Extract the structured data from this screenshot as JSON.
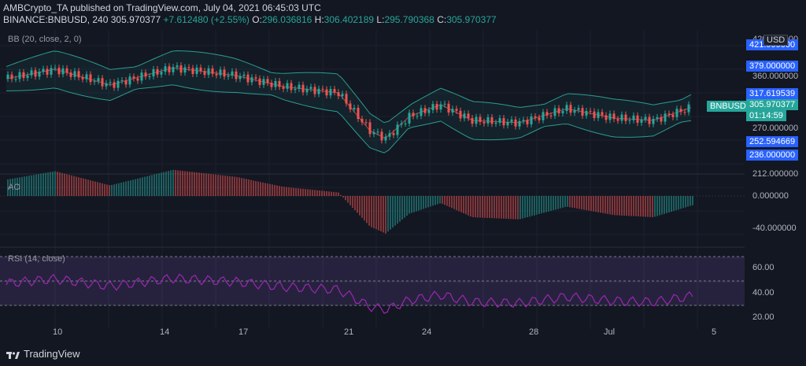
{
  "header": {
    "author_line": "AMBCrypto_TA published on TradingView.com, July 04, 2021 06:45:03 UTC",
    "symbol": "BINANCE:BNBUSD, 240",
    "last": "305.970377",
    "change": "+7.612480 (+2.55%)",
    "o_label": "O:",
    "o": "296.036816",
    "h_label": "H:",
    "h": "306.402189",
    "l_label": "L:",
    "l": "295.790368",
    "c_label": "C:",
    "c": "305.970377"
  },
  "panes": {
    "bb_label": "BB (20, close, 2, 0)",
    "ao_label": "AO",
    "rsi_label": "RSI (14, close)"
  },
  "price_axis": {
    "currency": "USD",
    "labels": [
      "420.000000",
      "360.000000",
      "270.000000",
      "212.000000"
    ],
    "tags": [
      "421.999000",
      "379.000000",
      "317.619539",
      "305.970377",
      "01:14:59",
      "252.594669",
      "236.000000"
    ],
    "symbol_tag": "BNBUSD"
  },
  "ao_axis": [
    "0.000000",
    "-40.000000"
  ],
  "rsi_axis": [
    "60.00",
    "40.00",
    "20.00"
  ],
  "x_axis": [
    "10",
    "14",
    "17",
    "21",
    "24",
    "28",
    "Jul",
    "5"
  ],
  "brand": "TradingView",
  "colors": {
    "bg": "#131722",
    "up": "#26a69a",
    "down": "#ef5350",
    "bb": "#2a9d8f",
    "rsi": "#9c27b0"
  }
}
